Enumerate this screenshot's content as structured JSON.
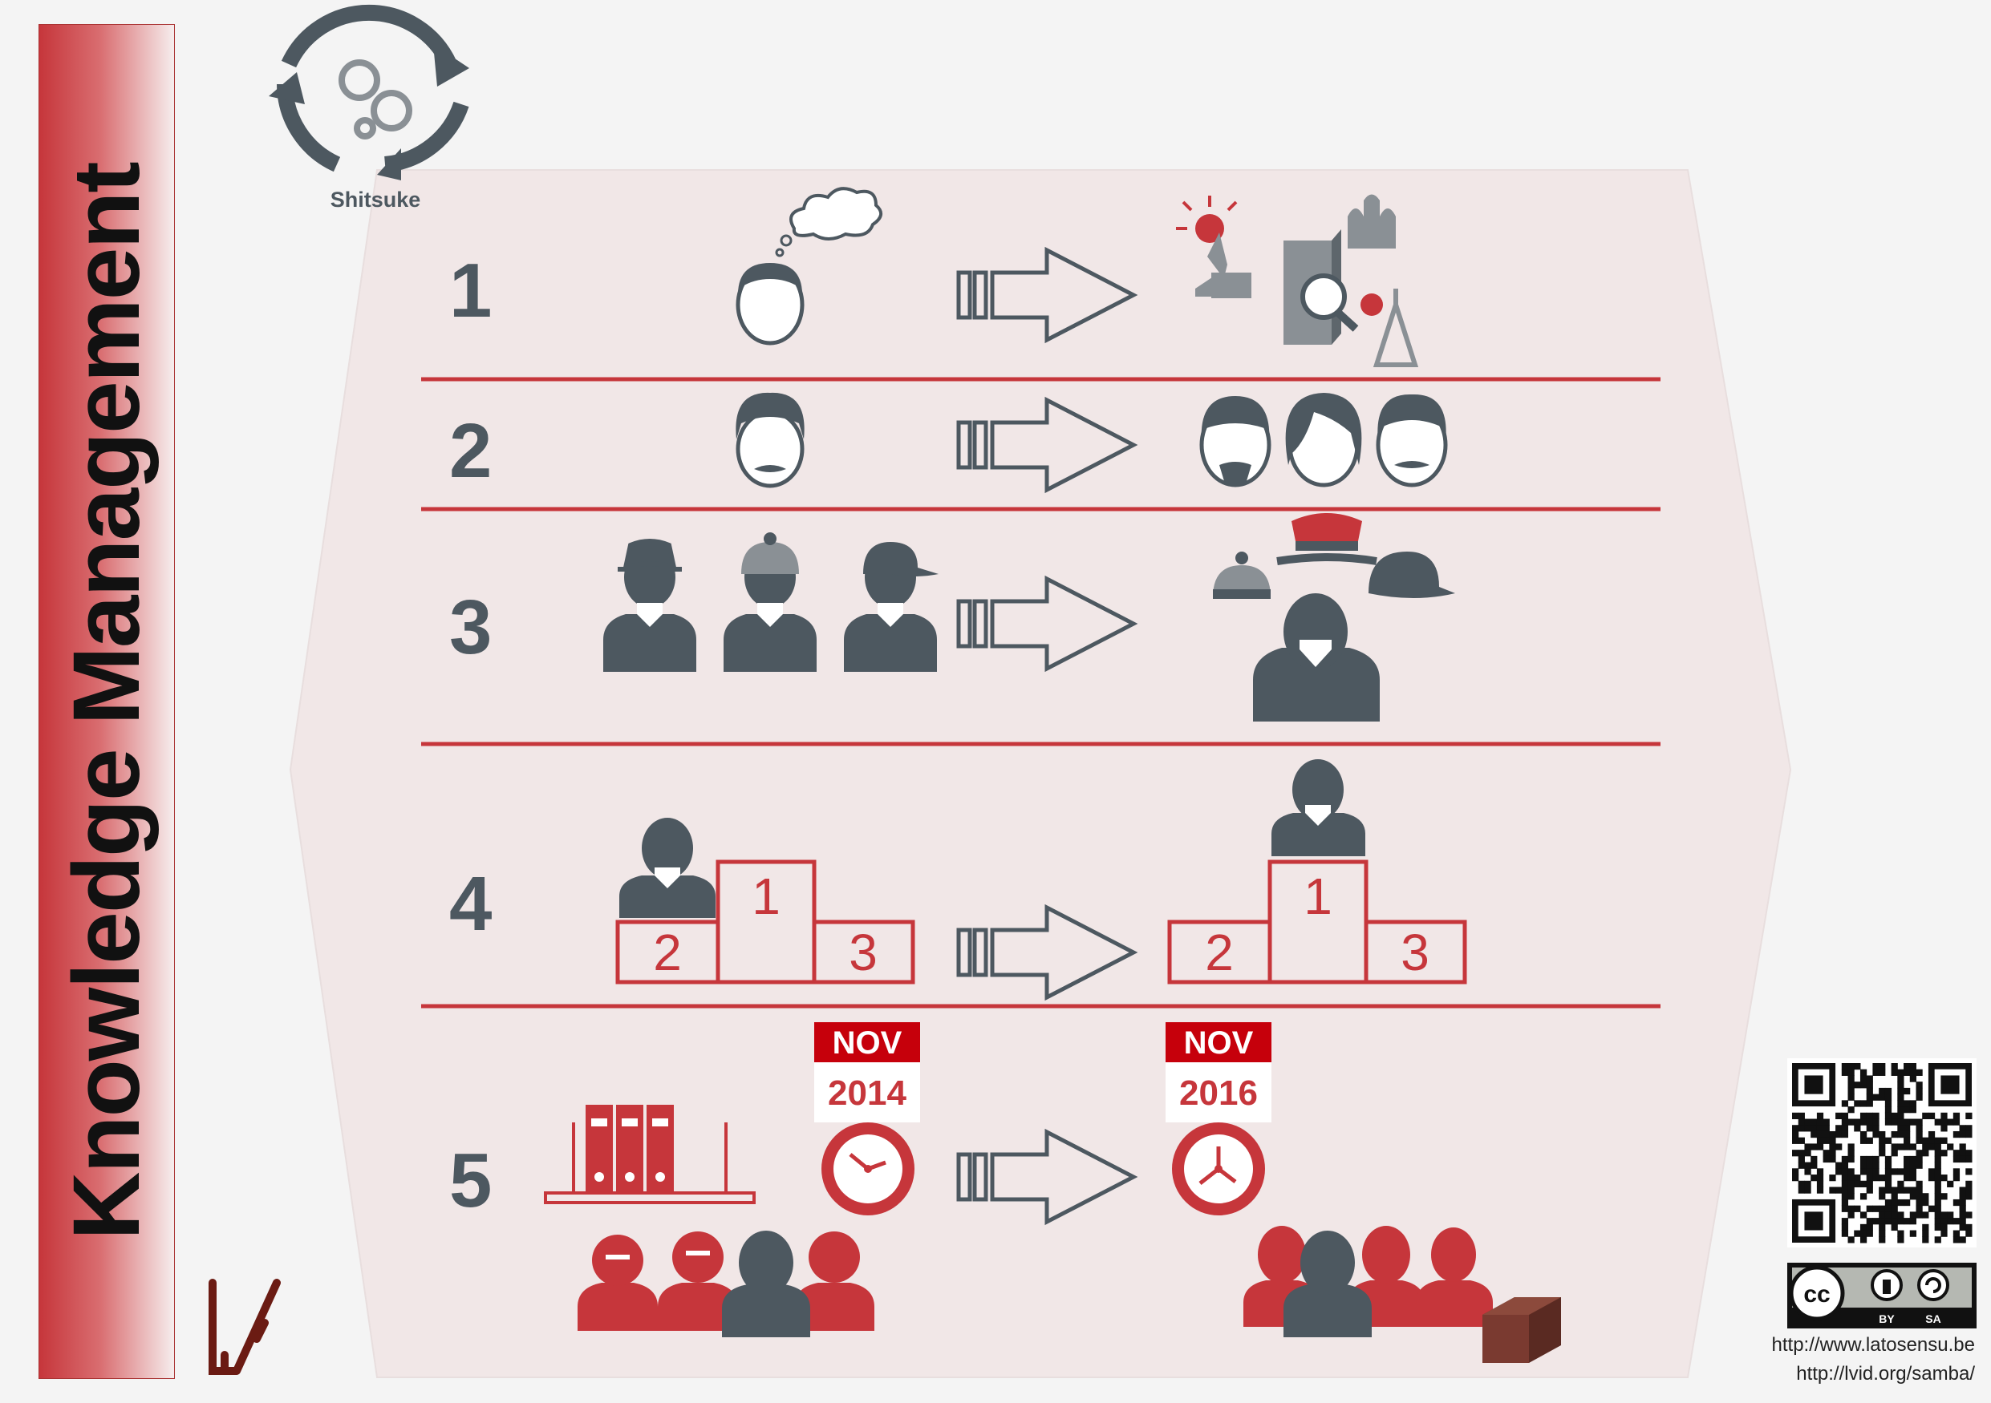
{
  "title": "Knowledge Management",
  "badge_label": "Shitsuke",
  "rows": [
    {
      "number": "1"
    },
    {
      "number": "2"
    },
    {
      "number": "3"
    },
    {
      "number": "4"
    },
    {
      "number": "5"
    }
  ],
  "podium": {
    "first": "1",
    "second": "2",
    "third": "3"
  },
  "calendars": [
    {
      "month": "NOV",
      "year": "2014"
    },
    {
      "month": "NOV",
      "year": "2016"
    }
  ],
  "license": {
    "by": "BY",
    "sa": "SA"
  },
  "urls": [
    "http://www.latosensu.be",
    "http://lvid.org/samba/"
  ],
  "colors": {
    "accent": "#c6363b",
    "icon": "#4d5860",
    "panel": "#f1e7e7"
  }
}
